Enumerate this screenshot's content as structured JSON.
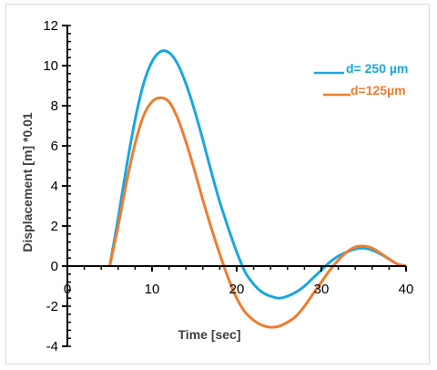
{
  "chart_data": {
    "type": "line",
    "title": "",
    "xlabel": "Time [sec]",
    "ylabel": "Displacement [m] *0.01",
    "xlim": [
      0,
      40
    ],
    "ylim": [
      -4,
      12
    ],
    "x_ticks": [
      0,
      10,
      20,
      30,
      40
    ],
    "y_ticks": [
      -4,
      -2,
      0,
      2,
      4,
      6,
      8,
      10,
      12
    ],
    "grid": false,
    "legend_position": "right",
    "series": [
      {
        "name": "d= 250 µm",
        "color": "#1aa7df",
        "points": [
          [
            5,
            0
          ],
          [
            6,
            2.4
          ],
          [
            7,
            5.0
          ],
          [
            8,
            7.3
          ],
          [
            9,
            9.1
          ],
          [
            10,
            10.2
          ],
          [
            11,
            10.7
          ],
          [
            12,
            10.65
          ],
          [
            13,
            10.1
          ],
          [
            14,
            9.1
          ],
          [
            15,
            7.8
          ],
          [
            16,
            6.3
          ],
          [
            17,
            4.7
          ],
          [
            18,
            3.2
          ],
          [
            19,
            1.9
          ],
          [
            20,
            0.7
          ],
          [
            21,
            -0.3
          ],
          [
            22,
            -0.9
          ],
          [
            23,
            -1.3
          ],
          [
            24,
            -1.5
          ],
          [
            25,
            -1.6
          ],
          [
            26,
            -1.5
          ],
          [
            27,
            -1.3
          ],
          [
            28,
            -1.0
          ],
          [
            29,
            -0.6
          ],
          [
            30,
            -0.2
          ],
          [
            31,
            0.2
          ],
          [
            32,
            0.5
          ],
          [
            33,
            0.7
          ],
          [
            34,
            0.85
          ],
          [
            35,
            0.9
          ],
          [
            36,
            0.8
          ],
          [
            37,
            0.6
          ],
          [
            38,
            0.35
          ],
          [
            39,
            0.1
          ],
          [
            40,
            0
          ]
        ]
      },
      {
        "name": "d=125µm",
        "color": "#ed7d31",
        "points": [
          [
            5,
            0
          ],
          [
            6,
            2.0
          ],
          [
            7,
            4.2
          ],
          [
            8,
            6.1
          ],
          [
            9,
            7.5
          ],
          [
            10,
            8.2
          ],
          [
            11,
            8.4
          ],
          [
            12,
            8.2
          ],
          [
            13,
            7.4
          ],
          [
            14,
            6.2
          ],
          [
            15,
            4.8
          ],
          [
            16,
            3.3
          ],
          [
            17,
            1.9
          ],
          [
            18,
            0.6
          ],
          [
            19,
            -0.6
          ],
          [
            20,
            -1.6
          ],
          [
            21,
            -2.3
          ],
          [
            22,
            -2.7
          ],
          [
            23,
            -2.95
          ],
          [
            24,
            -3.05
          ],
          [
            25,
            -3.0
          ],
          [
            26,
            -2.8
          ],
          [
            27,
            -2.5
          ],
          [
            28,
            -2.0
          ],
          [
            29,
            -1.4
          ],
          [
            30,
            -0.8
          ],
          [
            31,
            -0.2
          ],
          [
            32,
            0.3
          ],
          [
            33,
            0.7
          ],
          [
            34,
            0.95
          ],
          [
            35,
            1.0
          ],
          [
            36,
            0.9
          ],
          [
            37,
            0.65
          ],
          [
            38,
            0.35
          ],
          [
            39,
            0.1
          ],
          [
            40,
            0
          ]
        ]
      }
    ]
  }
}
